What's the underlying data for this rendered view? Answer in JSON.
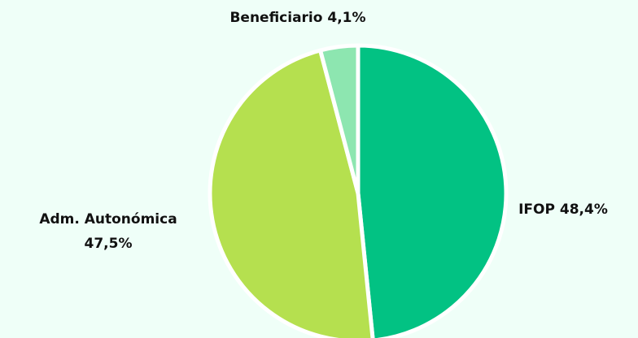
{
  "chart_data": {
    "type": "pie",
    "categories": [
      "IFOP",
      "Adm. Autonómica",
      "Beneficiario"
    ],
    "values": [
      48.4,
      47.5,
      4.1
    ],
    "value_labels": [
      "48,4%",
      "47,5%",
      "4,1%"
    ],
    "colors": [
      "#02c283",
      "#b5e04f",
      "#8de6b0"
    ]
  }
}
